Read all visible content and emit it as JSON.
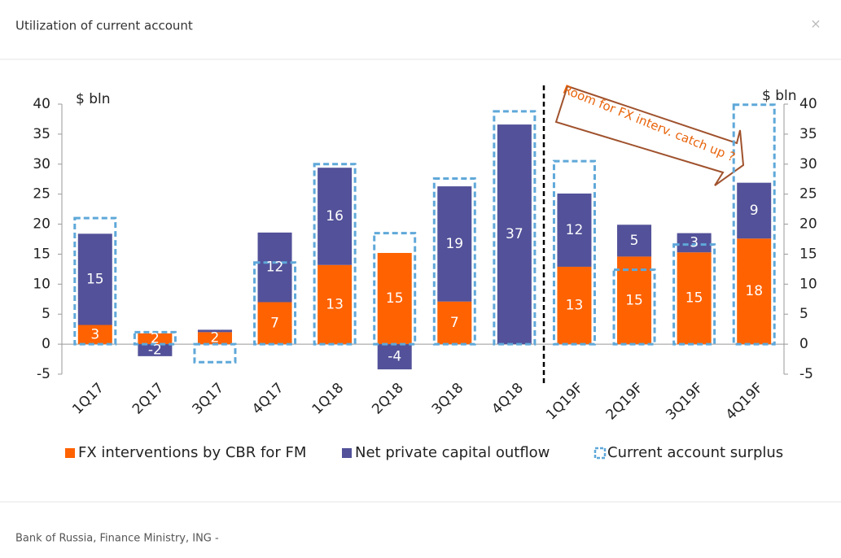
{
  "header": {
    "title": "Utilization of current account",
    "close": "×"
  },
  "chart_data": {
    "type": "stacked_bar",
    "y_label": "$ bln",
    "y2_label": "$ bln",
    "categories": [
      "1Q17",
      "2Q17",
      "3Q17",
      "4Q17",
      "1Q18",
      "2Q18",
      "3Q18",
      "4Q18",
      "1Q19F",
      "2Q19F",
      "3Q19F",
      "4Q19F"
    ],
    "series": [
      {
        "name": "FX interventions by CBR for FM",
        "color": "#ff6200",
        "values": [
          3.2,
          1.8,
          2,
          7,
          13.2,
          15.2,
          7.1,
          0,
          12.9,
          14.6,
          15.3,
          17.6
        ],
        "value_labels": [
          "3",
          "2",
          "2",
          "7",
          "13",
          "15",
          "7",
          null,
          "13",
          "15",
          "15",
          "18"
        ]
      },
      {
        "name": "Net private capital outflow",
        "color": "#525199",
        "values": [
          15.2,
          -2,
          0.4,
          11.6,
          16.2,
          -4.2,
          19.2,
          36.6,
          12.2,
          5.3,
          3.2,
          9.3
        ],
        "value_labels": [
          "15",
          "-2",
          null,
          "12",
          "16",
          "-4",
          "19",
          "37",
          "12",
          "5",
          "3",
          "9"
        ]
      },
      {
        "name": "Current account surplus",
        "color": "#5fa8d9",
        "style": "dashed-outline",
        "values": [
          21,
          2,
          -3,
          13.6,
          30,
          18.5,
          27.6,
          38.8,
          30.5,
          12.4,
          16.6,
          39.9
        ]
      }
    ],
    "ylim": [
      -5,
      40
    ],
    "yticks": [
      -5,
      0,
      5,
      10,
      15,
      20,
      25,
      30,
      35,
      40
    ],
    "y2lim": [
      -5,
      40
    ],
    "y2ticks": [
      -5,
      0,
      5,
      10,
      15,
      20,
      25,
      30,
      35,
      40
    ],
    "annotation": "Room for  FX interv. catch up ?"
  },
  "footer": {
    "source": "Bank of Russia, Finance Ministry, ING -"
  }
}
